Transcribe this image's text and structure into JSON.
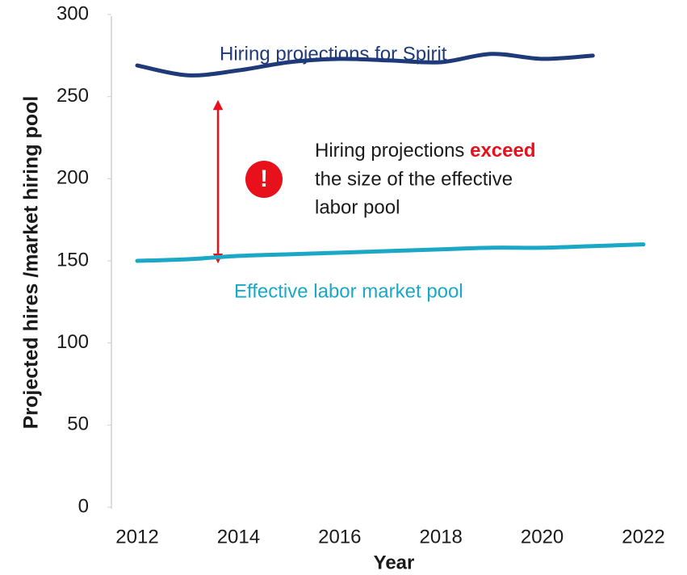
{
  "chart_data": {
    "type": "line",
    "ylabel": "Projected hires /market hiring pool",
    "xlabel": "Year",
    "xlim": [
      2012,
      2022
    ],
    "xticks": [
      2012,
      2014,
      2016,
      2018,
      2020,
      2022
    ],
    "ylim": [
      0,
      300
    ],
    "yticks": [
      0,
      50,
      100,
      150,
      200,
      250,
      300
    ],
    "series": [
      {
        "name": "Hiring projections for Spirit",
        "color": "#1f3a78",
        "x": [
          2012,
          2013,
          2014,
          2015,
          2016,
          2017,
          2018,
          2019,
          2020,
          2021
        ],
        "values": [
          269,
          263,
          266,
          271,
          273,
          272,
          271,
          276,
          273,
          275
        ]
      },
      {
        "name": "Effective labor market pool",
        "color": "#1ba8c6",
        "x": [
          2012,
          2013,
          2014,
          2015,
          2016,
          2017,
          2018,
          2019,
          2020,
          2021,
          2022
        ],
        "values": [
          150,
          151,
          153,
          154,
          155,
          156,
          157,
          158,
          158,
          159,
          160
        ]
      }
    ],
    "alert_icon": "!",
    "annotation": {
      "before": "Hiring projections",
      "emphasis": "exceed",
      "line2": "the size of the effective",
      "line3": "labor pool"
    }
  }
}
